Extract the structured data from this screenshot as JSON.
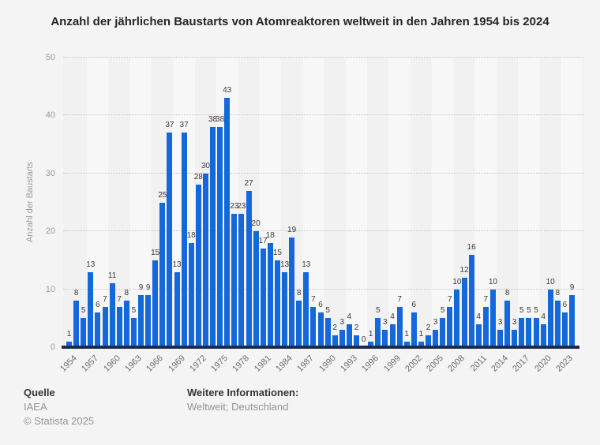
{
  "chart_data": {
    "type": "bar",
    "title": "Anzahl der jährlichen Baustarts von Atomreaktoren weltweit in den Jahren 1954 bis 2024",
    "ylabel": "Anzahl der Baustarts",
    "ylim": [
      0,
      50
    ],
    "yticks": [
      0,
      10,
      20,
      30,
      40,
      50
    ],
    "grid": true,
    "legend_position": "none",
    "bar_color": "#1568d9",
    "baseline_color": "#1a2b50",
    "years": [
      1954,
      1955,
      1956,
      1957,
      1958,
      1959,
      1960,
      1961,
      1962,
      1963,
      1964,
      1965,
      1966,
      1967,
      1968,
      1969,
      1970,
      1971,
      1972,
      1973,
      1974,
      1975,
      1976,
      1977,
      1978,
      1979,
      1980,
      1981,
      1982,
      1983,
      1984,
      1985,
      1986,
      1987,
      1988,
      1989,
      1990,
      1991,
      1992,
      1993,
      1994,
      1995,
      1996,
      1997,
      1998,
      1999,
      2000,
      2001,
      2002,
      2003,
      2004,
      2005,
      2006,
      2007,
      2008,
      2009,
      2010,
      2011,
      2012,
      2013,
      2014,
      2015,
      2016,
      2017,
      2018,
      2019,
      2020,
      2021,
      2022,
      2023,
      2024
    ],
    "values": [
      1,
      8,
      5,
      13,
      6,
      7,
      11,
      7,
      8,
      5,
      9,
      9,
      15,
      25,
      37,
      13,
      37,
      18,
      28,
      30,
      38,
      38,
      43,
      23,
      23,
      27,
      20,
      17,
      18,
      15,
      13,
      19,
      8,
      13,
      7,
      6,
      5,
      2,
      3,
      4,
      2,
      0,
      1,
      5,
      3,
      4,
      7,
      1,
      6,
      1,
      2,
      3,
      5,
      7,
      10,
      12,
      16,
      4,
      7,
      10,
      3,
      8,
      3,
      5,
      5,
      5,
      4,
      10,
      8,
      6,
      9
    ],
    "xtick_years": [
      1954,
      1957,
      1960,
      1963,
      1966,
      1969,
      1972,
      1975,
      1978,
      1981,
      1984,
      1987,
      1990,
      1993,
      1996,
      1999,
      2002,
      2005,
      2008,
      2011,
      2014,
      2017,
      2020,
      2023
    ]
  },
  "footer": {
    "source_label": "Quelle",
    "source_value": "IAEA",
    "copyright": "© Statista 2025",
    "info_label": "Weitere Informationen:",
    "info_value": "Weltweit; Deutschland"
  }
}
